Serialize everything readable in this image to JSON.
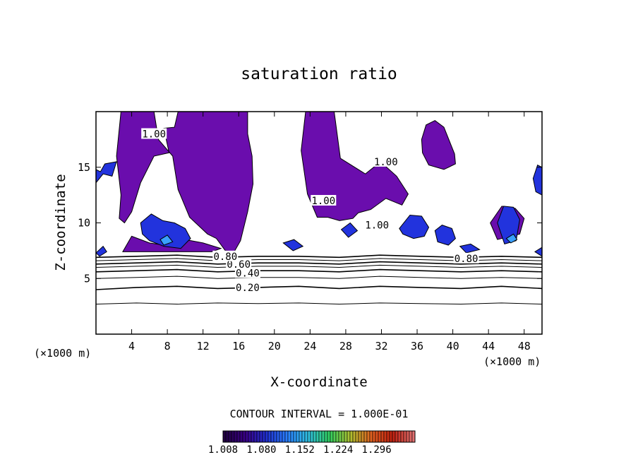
{
  "chart_data": {
    "type": "contour",
    "title": "saturation ratio",
    "xlabel": "X-coordinate",
    "ylabel": "Z-coordinate",
    "x_unit": "(×1000 m)",
    "y_unit": "(×1000 m)",
    "xlim": [
      0,
      50
    ],
    "ylim": [
      0,
      20
    ],
    "x_ticks": [
      4,
      8,
      12,
      16,
      20,
      24,
      28,
      32,
      36,
      40,
      44,
      48
    ],
    "y_ticks": [
      5,
      10,
      15
    ],
    "contour_interval_text": "CONTOUR INTERVAL = 1.000E-01",
    "contour_labels": [
      {
        "text": "0.20",
        "x": 17.0,
        "y": 4.2
      },
      {
        "text": "0.40",
        "x": 17.0,
        "y": 5.5
      },
      {
        "text": "0.60",
        "x": 16.0,
        "y": 6.3
      },
      {
        "text": "0.80",
        "x": 14.5,
        "y": 7.0
      },
      {
        "text": "0.80",
        "x": 41.5,
        "y": 6.8
      },
      {
        "text": "1.00",
        "x": 6.5,
        "y": 18.0
      },
      {
        "text": "1.00",
        "x": 32.5,
        "y": 15.5
      },
      {
        "text": "1.00",
        "x": 25.5,
        "y": 12.0
      },
      {
        "text": "1.00",
        "x": 31.5,
        "y": 9.8
      }
    ],
    "contour_levels": [
      {
        "level": 0.1,
        "z": [
          2.7,
          2.8,
          2.7,
          2.8,
          2.75,
          2.8,
          2.7,
          2.8,
          2.75,
          2.7,
          2.8,
          2.7
        ]
      },
      {
        "level": 0.2,
        "z": [
          4.0,
          4.2,
          4.3,
          4.1,
          4.2,
          4.3,
          4.1,
          4.3,
          4.2,
          4.1,
          4.3,
          4.1
        ]
      },
      {
        "level": 0.3,
        "z": [
          5.0,
          5.1,
          5.2,
          5.0,
          5.1,
          5.1,
          5.0,
          5.2,
          5.1,
          5.0,
          5.1,
          5.0
        ]
      },
      {
        "level": 0.4,
        "z": [
          5.6,
          5.7,
          5.8,
          5.6,
          5.7,
          5.7,
          5.6,
          5.8,
          5.7,
          5.6,
          5.7,
          5.6
        ]
      },
      {
        "level": 0.5,
        "z": [
          6.0,
          6.1,
          6.2,
          6.0,
          6.1,
          6.1,
          6.0,
          6.2,
          6.1,
          6.0,
          6.1,
          6.0
        ]
      },
      {
        "level": 0.6,
        "z": [
          6.3,
          6.4,
          6.5,
          6.3,
          6.4,
          6.4,
          6.3,
          6.5,
          6.4,
          6.3,
          6.4,
          6.3
        ]
      },
      {
        "level": 0.7,
        "z": [
          6.6,
          6.7,
          6.8,
          6.6,
          6.7,
          6.7,
          6.6,
          6.8,
          6.7,
          6.6,
          6.7,
          6.6
        ]
      },
      {
        "level": 0.8,
        "z": [
          6.9,
          7.0,
          7.1,
          6.9,
          7.0,
          7.0,
          6.9,
          7.1,
          7.0,
          6.9,
          7.0,
          6.9
        ]
      }
    ],
    "filled_regions": [
      {
        "name": "saturated-1.008",
        "color": "#6a0dad",
        "points": [
          [
            2.8,
            20
          ],
          [
            6.5,
            20
          ],
          [
            7.0,
            17.5
          ],
          [
            8.6,
            16.0
          ],
          [
            9.2,
            13.0
          ],
          [
            10.5,
            10.5
          ],
          [
            12.5,
            9.0
          ],
          [
            13.5,
            8.6
          ],
          [
            14.5,
            7.5
          ],
          [
            15.5,
            7.4
          ],
          [
            16.2,
            8.4
          ],
          [
            17.0,
            11.0
          ],
          [
            17.6,
            13.5
          ],
          [
            17.5,
            16.0
          ],
          [
            17.0,
            18.0
          ],
          [
            17.0,
            20.0
          ],
          [
            9.2,
            20.0
          ],
          [
            8.8,
            18.6
          ],
          [
            7.6,
            18.5
          ],
          [
            8.2,
            16.3
          ],
          [
            6.5,
            16.0
          ],
          [
            5.0,
            13.6
          ],
          [
            4.0,
            11.0
          ],
          [
            3.2,
            10.0
          ],
          [
            2.6,
            10.4
          ],
          [
            2.8,
            12.5
          ],
          [
            2.3,
            16.0
          ]
        ]
      },
      {
        "name": "saturated-1.008",
        "color": "#6a0dad",
        "points": [
          [
            23.5,
            20
          ],
          [
            26.7,
            20
          ],
          [
            27.4,
            15.8
          ],
          [
            30.2,
            14.4
          ],
          [
            31.9,
            15.5
          ],
          [
            33.7,
            14.2
          ],
          [
            35.0,
            12.6
          ],
          [
            34.3,
            11.6
          ],
          [
            32.5,
            12.2
          ],
          [
            30.8,
            11.2
          ],
          [
            29.4,
            10.9
          ],
          [
            28.8,
            10.4
          ],
          [
            27.3,
            10.2
          ],
          [
            26.0,
            10.5
          ],
          [
            24.8,
            10.5
          ],
          [
            23.7,
            12.6
          ],
          [
            23.0,
            16.5
          ]
        ]
      },
      {
        "name": "saturated-1.008",
        "color": "#6a0dad",
        "points": [
          [
            36.5,
            17.5
          ],
          [
            37.0,
            18.8
          ],
          [
            38.0,
            19.2
          ],
          [
            39.0,
            18.6
          ],
          [
            40.2,
            16.2
          ],
          [
            40.3,
            15.3
          ],
          [
            39.0,
            14.8
          ],
          [
            37.3,
            15.2
          ],
          [
            36.6,
            16.3
          ]
        ]
      },
      {
        "name": "saturated-1.008",
        "color": "#6a0dad",
        "points": [
          [
            3.0,
            7.4
          ],
          [
            4.0,
            8.8
          ],
          [
            6.0,
            8.2
          ],
          [
            8.5,
            7.9
          ],
          [
            10.0,
            8.5
          ],
          [
            12.0,
            8.2
          ],
          [
            14.0,
            7.7
          ],
          [
            13.0,
            7.4
          ],
          [
            8.0,
            7.4
          ]
        ]
      },
      {
        "name": "saturated-1.008",
        "color": "#6a0dad",
        "points": [
          [
            44.2,
            10.0
          ],
          [
            45.5,
            11.5
          ],
          [
            47.0,
            11.3
          ],
          [
            48.0,
            10.4
          ],
          [
            47.5,
            9.0
          ],
          [
            45.0,
            8.5
          ]
        ]
      },
      {
        "name": "supersaturated-1.04",
        "color": "#2233dd",
        "points": [
          [
            5.0,
            10.0
          ],
          [
            6.2,
            10.8
          ],
          [
            7.5,
            10.2
          ],
          [
            8.8,
            10.0
          ],
          [
            10.0,
            9.5
          ],
          [
            10.6,
            8.6
          ],
          [
            9.5,
            7.7
          ],
          [
            7.6,
            7.9
          ],
          [
            6.0,
            8.4
          ],
          [
            5.2,
            9.0
          ]
        ]
      },
      {
        "name": "supersaturated-1.04",
        "color": "#2233dd",
        "points": [
          [
            34.0,
            9.5
          ],
          [
            35.2,
            10.7
          ],
          [
            36.5,
            10.6
          ],
          [
            37.3,
            9.6
          ],
          [
            36.8,
            8.8
          ],
          [
            35.6,
            8.6
          ],
          [
            34.4,
            9.0
          ]
        ]
      },
      {
        "name": "supersaturated-1.04",
        "color": "#2233dd",
        "points": [
          [
            38.0,
            9.3
          ],
          [
            38.8,
            9.8
          ],
          [
            39.9,
            9.5
          ],
          [
            40.3,
            8.6
          ],
          [
            39.5,
            8.0
          ],
          [
            38.3,
            8.3
          ]
        ]
      },
      {
        "name": "supersaturated-1.04",
        "color": "#2233dd",
        "points": [
          [
            45.0,
            10.0
          ],
          [
            45.7,
            11.5
          ],
          [
            46.8,
            11.4
          ],
          [
            47.5,
            10.3
          ],
          [
            47.1,
            8.4
          ],
          [
            45.8,
            8.1
          ]
        ]
      },
      {
        "name": "supersaturated-1.04",
        "color": "#2233dd",
        "points": [
          [
            49.0,
            14.0
          ],
          [
            49.5,
            15.2
          ],
          [
            50.0,
            15.0
          ],
          [
            50.0,
            12.5
          ],
          [
            49.3,
            12.8
          ]
        ]
      },
      {
        "name": "supersaturated-1.04",
        "color": "#2233dd",
        "points": [
          [
            0.0,
            13.6
          ],
          [
            0.8,
            14.4
          ],
          [
            1.8,
            14.2
          ],
          [
            2.3,
            15.5
          ],
          [
            1.0,
            15.3
          ],
          [
            0.5,
            14.6
          ],
          [
            0.0,
            14.8
          ]
        ]
      },
      {
        "name": "supersaturated-1.04",
        "color": "#2233dd",
        "points": [
          [
            21.0,
            8.2
          ],
          [
            22.2,
            8.5
          ],
          [
            23.2,
            7.9
          ],
          [
            22.1,
            7.5
          ]
        ]
      },
      {
        "name": "supersaturated-1.04",
        "color": "#2233dd",
        "points": [
          [
            27.5,
            9.4
          ],
          [
            28.5,
            10.0
          ],
          [
            29.3,
            9.3
          ],
          [
            28.3,
            8.7
          ]
        ]
      },
      {
        "name": "supersaturated-1.04",
        "color": "#2233dd",
        "points": [
          [
            40.8,
            7.9
          ],
          [
            42.0,
            8.1
          ],
          [
            43.0,
            7.6
          ],
          [
            41.5,
            7.3
          ]
        ]
      },
      {
        "name": "supersaturated-1.04",
        "color": "#2233dd",
        "points": [
          [
            0.0,
            7.3
          ],
          [
            0.8,
            7.9
          ],
          [
            1.2,
            7.4
          ],
          [
            0.4,
            7.0
          ]
        ]
      },
      {
        "name": "supersaturated-1.04",
        "color": "#2233dd",
        "points": [
          [
            49.2,
            7.4
          ],
          [
            50.0,
            7.8
          ],
          [
            50.0,
            7.0
          ]
        ]
      },
      {
        "name": "supersaturated-1.12",
        "color": "#3aa0ff",
        "points": [
          [
            7.2,
            8.5
          ],
          [
            8.0,
            8.9
          ],
          [
            8.6,
            8.3
          ],
          [
            7.6,
            8.0
          ]
        ]
      },
      {
        "name": "supersaturated-1.12",
        "color": "#3aa0ff",
        "points": [
          [
            46.0,
            8.6
          ],
          [
            46.8,
            9.0
          ],
          [
            47.2,
            8.5
          ],
          [
            46.5,
            8.2
          ]
        ]
      }
    ],
    "colorbar": {
      "ticks": [
        "1.008",
        "1.080",
        "1.152",
        "1.224",
        "1.296"
      ],
      "range": [
        1.008,
        1.368
      ],
      "colors": [
        "#200040",
        "#3a0088",
        "#2030d0",
        "#2a80ff",
        "#30c0e0",
        "#30d060",
        "#b0c030",
        "#e06020",
        "#c02010",
        "#e07070"
      ]
    },
    "grid": false,
    "legend": "colorbar-bottom"
  },
  "colors": {
    "background": "#ffffff",
    "axes": "#000000"
  }
}
